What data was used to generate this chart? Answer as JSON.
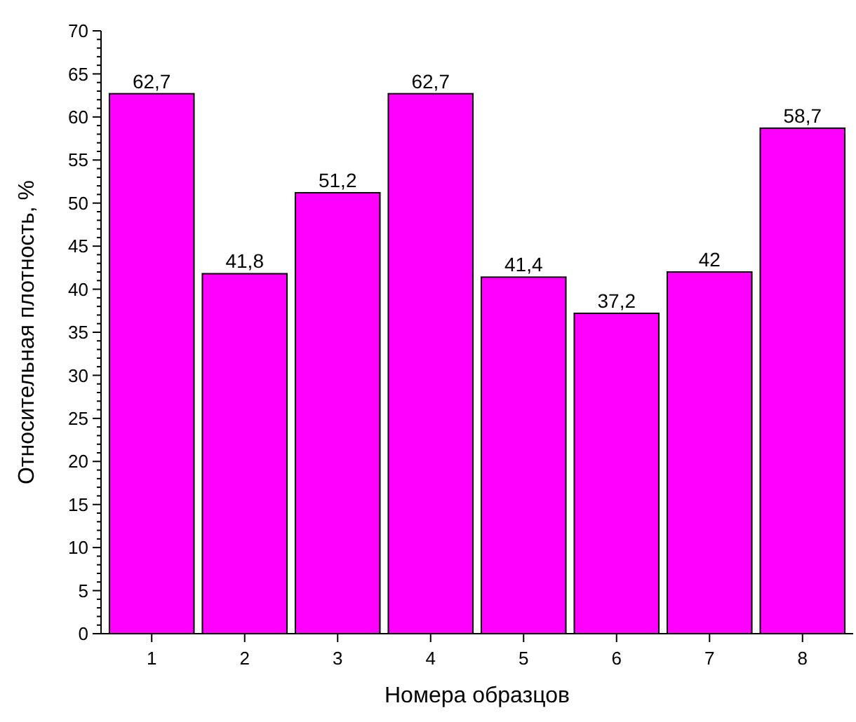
{
  "chart_data": {
    "type": "bar",
    "xlabel": "Номера образцов",
    "ylabel": "Относительная плотность, %",
    "categories": [
      "1",
      "2",
      "3",
      "4",
      "5",
      "6",
      "7",
      "8"
    ],
    "values": [
      62.7,
      41.8,
      51.2,
      62.7,
      41.4,
      37.2,
      42,
      58.7
    ],
    "value_labels": [
      "62,7",
      "41,8",
      "51,2",
      "62,7",
      "41,4",
      "37,2",
      "42",
      "58,7"
    ],
    "color": "#ff00ff",
    "ylim": [
      0,
      70
    ],
    "yticks": [
      0,
      5,
      10,
      15,
      20,
      25,
      30,
      35,
      40,
      45,
      50,
      55,
      60,
      65,
      70
    ],
    "grid": false
  }
}
